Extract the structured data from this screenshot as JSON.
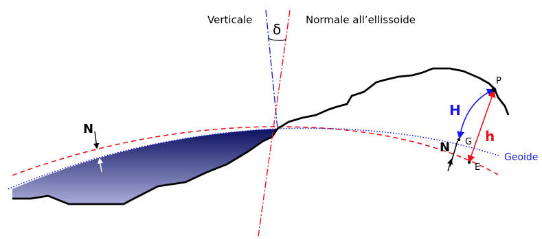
{
  "labels": {
    "verticale": "Verticale",
    "normale": "Normale all’ellissoide",
    "delta": "δ",
    "n_left": "N",
    "n_right": "N",
    "h_ortho": "H",
    "h_ellips": "h",
    "p": "P",
    "g": "G",
    "e": "E",
    "geoide": "Geoide"
  },
  "colors": {
    "ellipsoid": "#e8141c",
    "geoid": "#1a1adc",
    "vertical": "#1a1adc",
    "terrain": "#000000",
    "fill_top": "#0c1060",
    "fill_bottom": "#a9acd8"
  }
}
